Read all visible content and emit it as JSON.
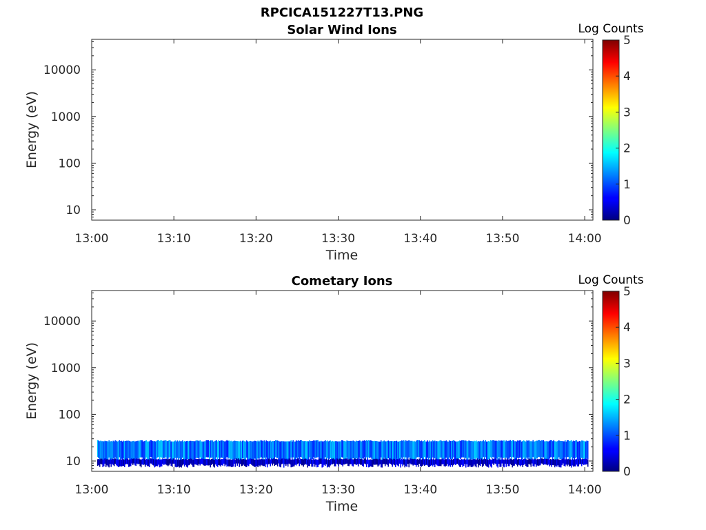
{
  "figure_title": "RPCICA151227T13.PNG",
  "colors": {
    "axis": "#262626",
    "jet_low": "#00007f",
    "jet_high": "#7f0000"
  },
  "chart_data": [
    {
      "type": "heatmap",
      "title": "Solar Wind Ions",
      "xlabel": "Time",
      "ylabel": "Energy (eV)",
      "x_tick_labels": [
        "13:00",
        "13:10",
        "13:20",
        "13:30",
        "13:40",
        "13:50",
        "14:00"
      ],
      "x_range": [
        "13:00",
        "14:01"
      ],
      "y_scale": "log",
      "y_range": [
        6,
        45000
      ],
      "y_tick_values": [
        10,
        100,
        1000,
        10000
      ],
      "y_tick_labels": [
        "10",
        "100",
        "1000",
        "10000"
      ],
      "colorbar": {
        "label": "Log Counts",
        "range": [
          0,
          5
        ],
        "tick_labels": [
          "0",
          "1",
          "2",
          "3",
          "4",
          "5"
        ],
        "colormap": "jet"
      },
      "data_description": "no counts",
      "bands": []
    },
    {
      "type": "heatmap",
      "title": "Cometary Ions",
      "xlabel": "Time",
      "ylabel": "Energy (eV)",
      "x_tick_labels": [
        "13:00",
        "13:10",
        "13:20",
        "13:30",
        "13:40",
        "13:50",
        "14:00"
      ],
      "x_range": [
        "13:00",
        "14:01"
      ],
      "y_scale": "log",
      "y_range": [
        6,
        45000
      ],
      "y_tick_values": [
        10,
        100,
        1000,
        10000
      ],
      "y_tick_labels": [
        "10",
        "100",
        "1000",
        "10000"
      ],
      "colorbar": {
        "label": "Log Counts",
        "range": [
          0,
          5
        ],
        "tick_labels": [
          "0",
          "1",
          "2",
          "3",
          "4",
          "5"
        ],
        "colormap": "jet"
      },
      "data_description": "persistent low-energy ion band",
      "bands": [
        {
          "t_start": "13:00:40",
          "t_end": "14:00:20",
          "e_low": 11,
          "e_high": 27,
          "log_counts": 1.2
        },
        {
          "t_start": "13:00:40",
          "t_end": "14:00:20",
          "e_low": 8,
          "e_high": 11,
          "log_counts": 0.3
        }
      ]
    }
  ]
}
